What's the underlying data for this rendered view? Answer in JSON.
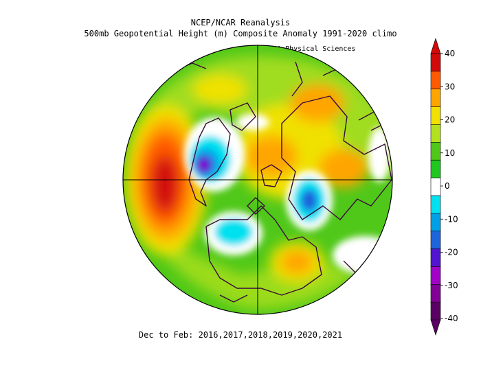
{
  "header": {
    "line1": "NCEP/NCAR Reanalysis",
    "line2": "500mb Geopotential Height (m) Composite Anomaly 1991-2020 climo",
    "credit": "NOAA Physical Sciences Laboratory"
  },
  "footer": {
    "period": "Dec to Feb: 2016,2017,2018,2019,2020,2021"
  },
  "colorbar": {
    "labels": [
      "40",
      "30",
      "20",
      "10",
      "0",
      "-10",
      "-20",
      "-30",
      "-40"
    ],
    "colors": [
      "#d20a0a",
      "#ff5a00",
      "#ffa500",
      "#f0e100",
      "#b4e11e",
      "#50c819",
      "#1ec81e",
      "#ffffff",
      "#00e1f0",
      "#00a0e6",
      "#1e64dc",
      "#5014d2",
      "#a000c8",
      "#820096",
      "#5a0064"
    ]
  },
  "map": {
    "projection": "north-polar-stereographic",
    "anomalies": [
      {
        "name": "north-pacific-ridge",
        "sign": "positive",
        "peak_m": 40
      },
      {
        "name": "north-atlantic-trough",
        "sign": "negative",
        "peak_m": -30
      },
      {
        "name": "siberian-trough",
        "sign": "negative",
        "peak_m": -20
      },
      {
        "name": "alaska-trough",
        "sign": "negative",
        "peak_m": -10
      },
      {
        "name": "central-arctic-high",
        "sign": "positive",
        "peak_m": 30
      },
      {
        "name": "eastern-us-high",
        "sign": "positive",
        "peak_m": 30
      }
    ]
  }
}
